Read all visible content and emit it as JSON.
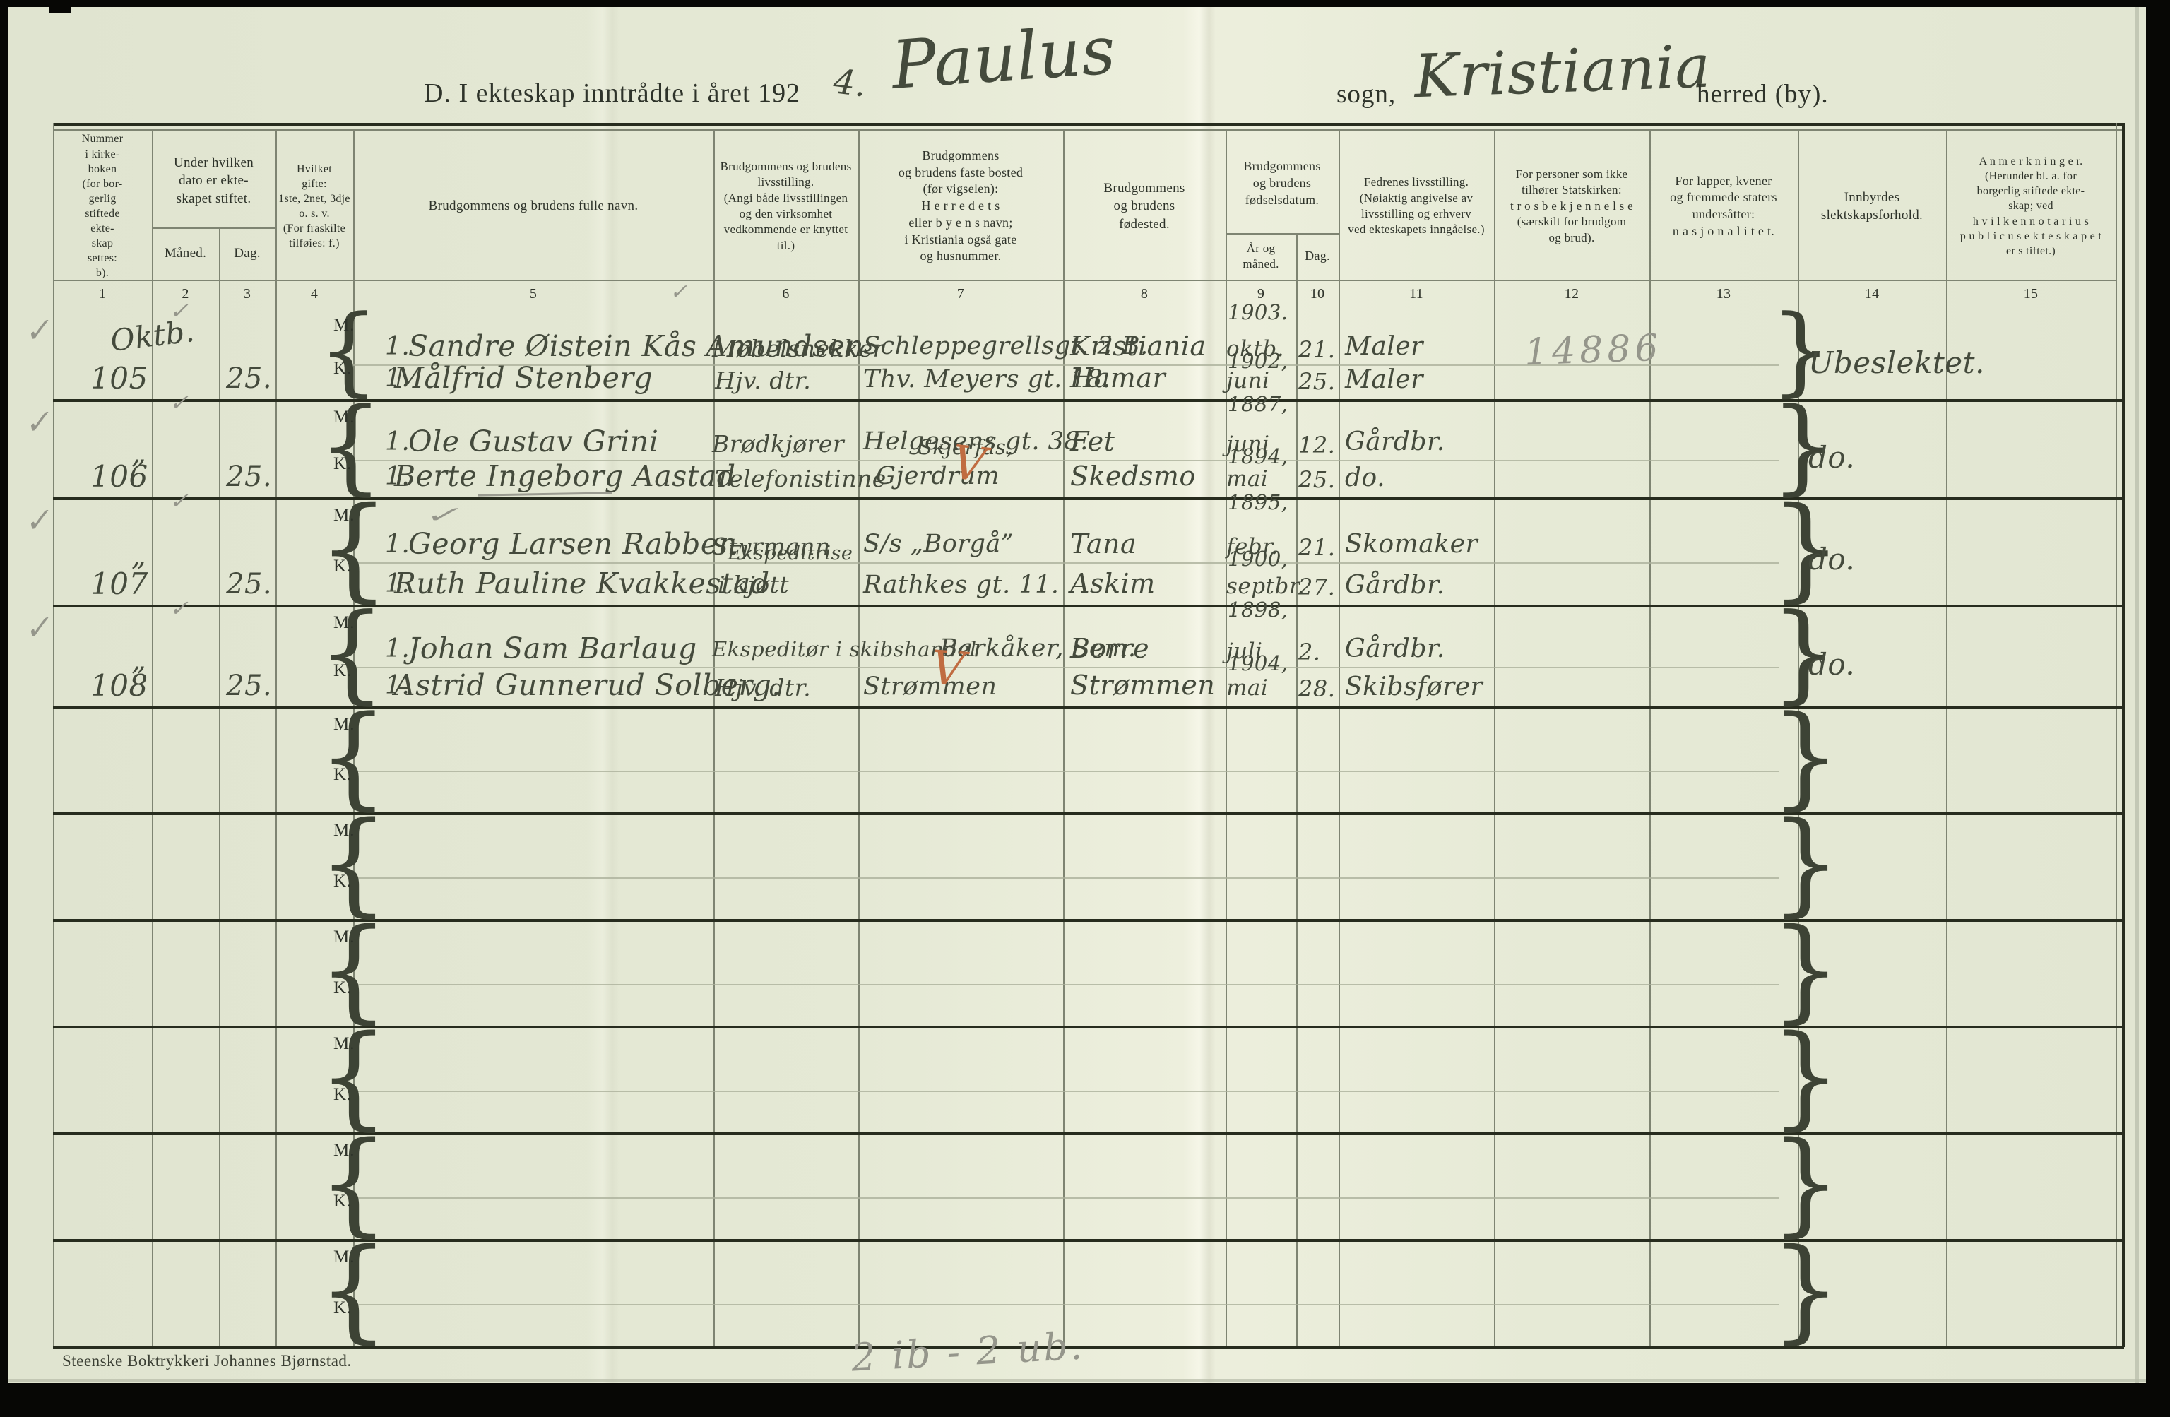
{
  "title": {
    "printed_prefix": "D. I ekteskap inntrådte i året 192",
    "year_handwritten": "4.",
    "parish_handwritten": "Paulus",
    "sogn_label": "sogn,",
    "municipality_handwritten": "Kristiania",
    "herred_label": "herred (by)."
  },
  "table": {
    "column_numbers": [
      "1",
      "2",
      "3",
      "4",
      "5",
      "6",
      "7",
      "8",
      "9",
      "10",
      "11",
      "12",
      "13",
      "14",
      "15"
    ],
    "headers": {
      "col1": "Nummer\ni kirke-\nboken\n(for bor-\ngerlig\nstiftede\nekte-\nskap\nsettes:\nb).",
      "col2_3": {
        "main": "Under hvilken\ndato er ekte-\nskapet stiftet.",
        "sub_month": "Måned.",
        "sub_day": "Dag."
      },
      "col4": "Hvilket\ngifte:\n1ste, 2net, 3dje\no. s. v.\n(For fraskilte\ntilføies: f.)",
      "col5": "Brudgommens og brudens fulle navn.",
      "col6": "Brudgommens og brudens\nlivsstilling.\n(Angi både livsstillingen\nog den virksomhet\nvedkommende er knyttet til.)",
      "col7": "Brudgommens\nog brudens faste bosted\n(før vigselen):\nH e r r e d e t s\neller b y e n s  navn;\ni Kristiania også gate\nog husnummer.",
      "col8": "Brudgommens\nog brudens\nfødested.",
      "col9_10": {
        "main": "Brudgommens\nog brudens\nfødselsdatum.",
        "sub_year": "År og\nmåned.",
        "sub_day": "Dag."
      },
      "col11": "Fedrenes livsstilling.\n(Nøiaktig angivelse av\nlivsstilling og erhverv\nved ekteskapets inngåelse.)",
      "col12": "For personer som ikke\ntilhører Statskirken:\nt r o s b e k j e n n e l s e\n(særskilt for brudgom\nog brud).",
      "col13": "For lapper, kvener\nog fremmede staters\nundersåtter:\nn a s j o n a l i t e t.",
      "col14": "Innbyrdes\nslektskapsforhold.",
      "col15": "A n m e r k n i n g e r.\n(Herunder bl. a. for\nborgerlig stiftede ekte-\nskap; ved\nh v i l k e n  n o t a r i u s\np u b l i c u s  e k t e s k a p e t\ner s tiftet.)"
    },
    "row_labels": {
      "m": "M.",
      "k": "K."
    },
    "entries": [
      {
        "no": "105",
        "month": "Oktb.",
        "day": "25.",
        "m": {
          "gifte": "1.",
          "name": "Sandre Øistein Kås Amundsen",
          "occupation": "Møbelsnekker",
          "residence": "Schleppegrellsgt. 2 B.",
          "birthplace": "Kristiania",
          "birth_year": "1903.",
          "birth_month": "oktb.",
          "birth_day": "21.",
          "father_occupation": "Maler"
        },
        "k": {
          "gifte": "1.",
          "name": "Målfrid Stenberg",
          "occupation": "Hjv. dtr.",
          "residence": "Thv. Meyers gt. 18.",
          "birthplace": "Hamar",
          "birth_year": "1902,",
          "birth_month": "juni",
          "birth_day": "25.",
          "father_occupation": "Maler"
        },
        "col12_pencil": "14886",
        "kinship": "Ubeslektet."
      },
      {
        "no": "106",
        "month": "„",
        "day": "25.",
        "m": {
          "gifte": "1.",
          "name": "Ole Gustav Grini",
          "occupation": "Brødkjører",
          "residence": "Helgesens gt. 38.",
          "birthplace": "Fet",
          "birth_year": "1887,",
          "birth_month": "juni",
          "birth_day": "12.",
          "father_occupation": "Gårdbr."
        },
        "k": {
          "gifte": "1.",
          "name": "Berte Ingeborg Aastad",
          "occupation": "Telefonistinne",
          "residence": "Skjerfås,",
          "residence2": "Gjerdrum",
          "birthplace": "Skedsmo",
          "birth_year": "1894,",
          "birth_month": "mai",
          "birth_day": "25.",
          "father_occupation": "do."
        },
        "kinship": "do."
      },
      {
        "no": "107",
        "month": "„",
        "day": "25.",
        "m": {
          "gifte": "1.",
          "name": "Georg Larsen Rabben",
          "occupation": "Styrmann",
          "residence": "S/s „Borgå”",
          "birthplace": "Tana",
          "birth_year": "1895,",
          "birth_month": "febr.",
          "birth_day": "21.",
          "father_occupation": "Skomaker"
        },
        "k": {
          "gifte": "1.",
          "name": "Ruth Pauline Kvakkestad",
          "occupation": "Ekspeditrise",
          "occupation2": "i kjøtt",
          "residence": "Rathkes gt. 11.",
          "birthplace": "Askim",
          "birth_year": "1900,",
          "birth_month": "septbr.",
          "birth_day": "27.",
          "father_occupation": "Gårdbr."
        },
        "kinship": "do."
      },
      {
        "no": "108",
        "month": "„",
        "day": "25.",
        "m": {
          "gifte": "1.",
          "name": "Johan Sam Barlaug",
          "occupation": "Ekspeditør i skibshandel",
          "residence": "Barkåker, Sem.",
          "birthplace": "Borre",
          "birth_year": "1898,",
          "birth_month": "juli",
          "birth_day": "2.",
          "father_occupation": "Gårdbr."
        },
        "k": {
          "gifte": "1.",
          "name": "Astrid Gunnerud Solberg.",
          "occupation": "Hjv. dtr.",
          "residence": "Strømmen",
          "birthplace": "Strømmen",
          "birth_year": "1904,",
          "birth_month": "mai",
          "birth_day": "28.",
          "father_occupation": "Skibsfører"
        },
        "kinship": "do."
      }
    ],
    "empty_pairs": 6
  },
  "marks": {
    "pencil_checkmark": "✓",
    "ditto_mark": "„",
    "red_check_mark": "V",
    "brace_open": "{",
    "brace_close": "}"
  },
  "annotations": {
    "pencil_tally": "2 ib - 2 ub."
  },
  "footer": {
    "printer": "Steenske Boktrykkeri Johannes Bjørnstad."
  }
}
